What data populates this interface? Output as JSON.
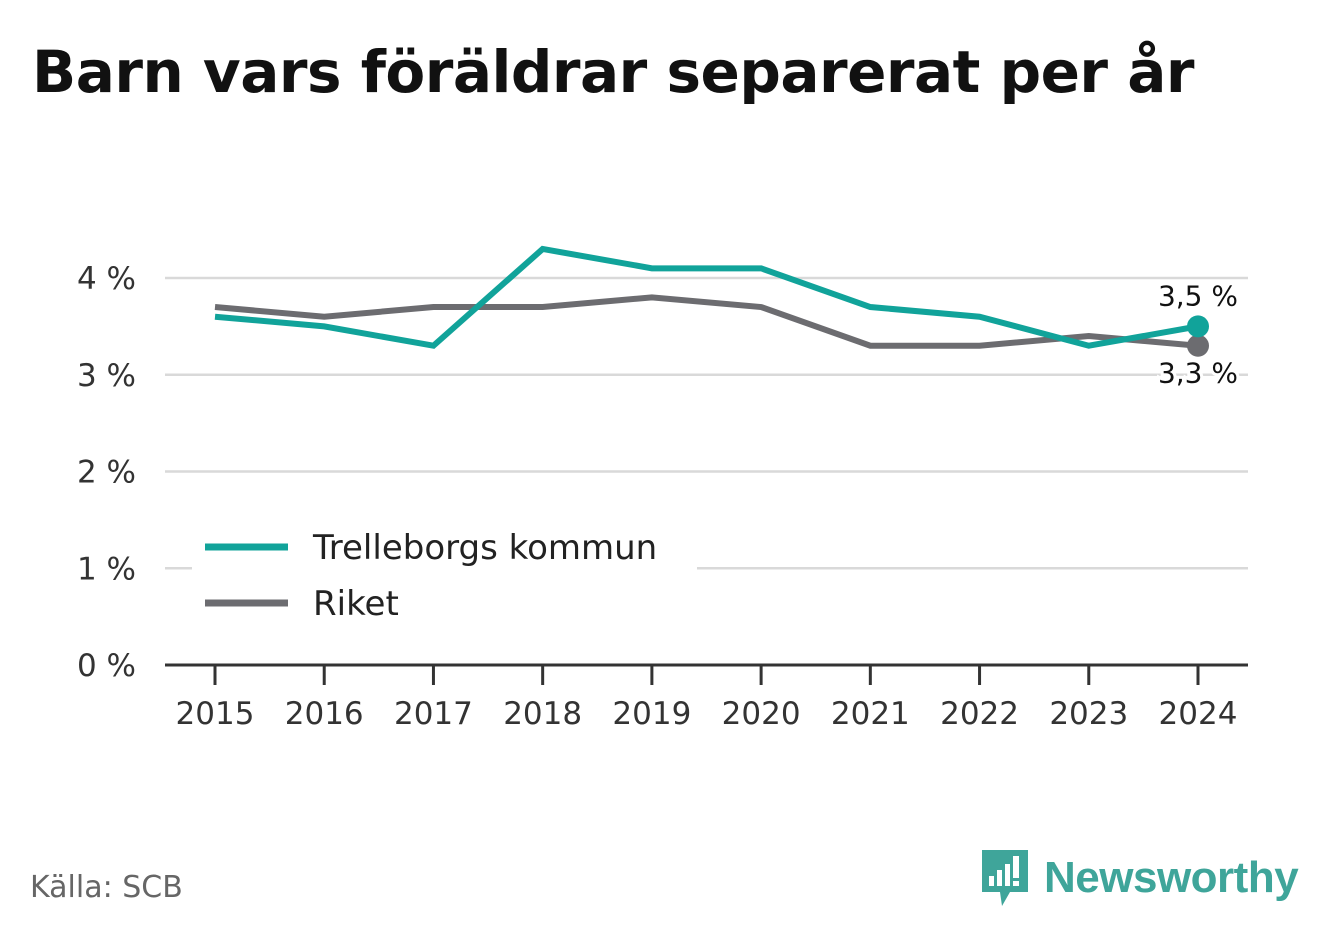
{
  "title": "Barn vars föräldrar separerat per år",
  "source": "Källa: SCB",
  "brand": "Newsworthy",
  "colors": {
    "kommun": "#11a39a",
    "riket": "#6c6c70",
    "grid": "#d9d9d9",
    "axis": "#333333"
  },
  "chart_data": {
    "type": "line",
    "x": [
      "2015",
      "2016",
      "2017",
      "2018",
      "2019",
      "2020",
      "2021",
      "2022",
      "2023",
      "2024"
    ],
    "ylim": [
      0,
      4
    ],
    "yticks": [
      0,
      1,
      2,
      3,
      4
    ],
    "ytick_labels": [
      "0 %",
      "1 %",
      "2 %",
      "3 %",
      "4 %"
    ],
    "grid": true,
    "legend_position": "lower-left",
    "series": [
      {
        "name": "Trelleborgs kommun",
        "values": [
          3.6,
          3.5,
          3.3,
          4.3,
          4.1,
          4.1,
          3.7,
          3.6,
          3.3,
          3.5
        ],
        "end_label": "3,5 %"
      },
      {
        "name": "Riket",
        "values": [
          3.7,
          3.6,
          3.7,
          3.7,
          3.8,
          3.7,
          3.3,
          3.3,
          3.4,
          3.3
        ],
        "end_label": "3,3 %"
      }
    ]
  }
}
